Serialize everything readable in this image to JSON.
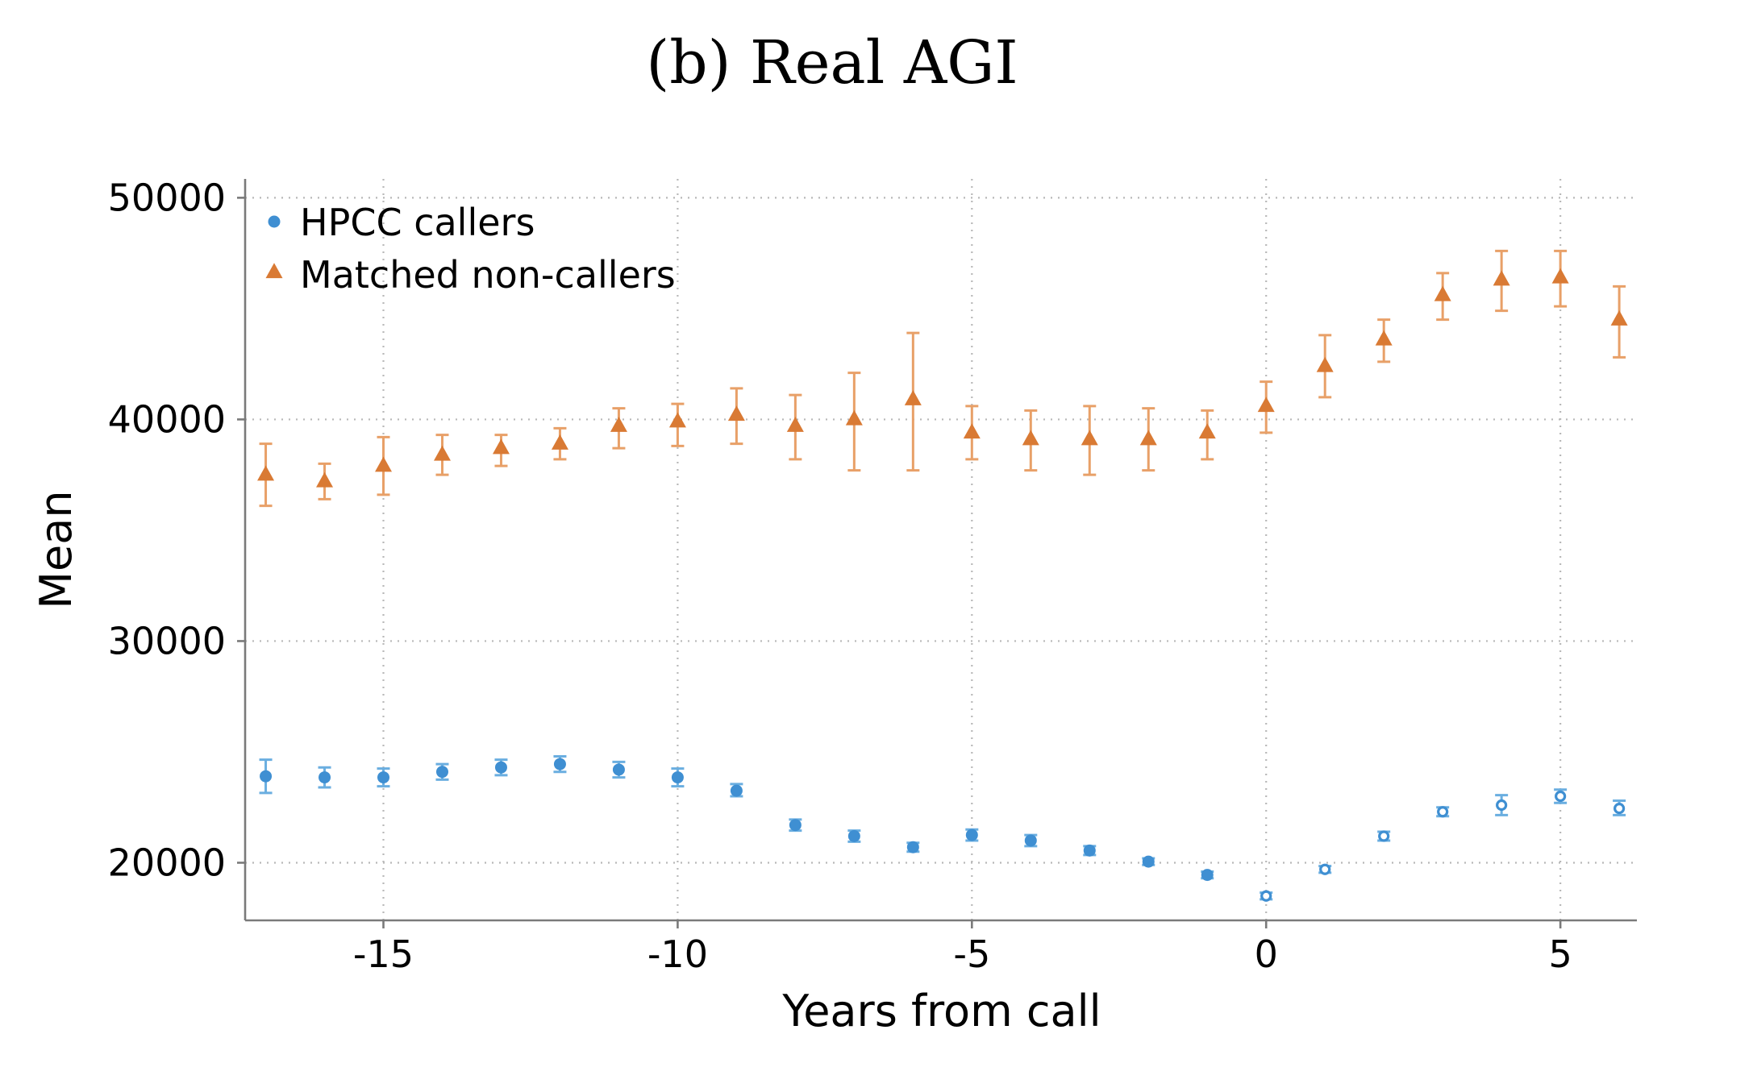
{
  "chart_data": {
    "type": "scatter",
    "title": "(b) Real AGI",
    "xlabel": "Years from call",
    "ylabel": "Mean",
    "xlim": [
      -17.35,
      6.3
    ],
    "ylim": [
      17400,
      50850
    ],
    "xticks": [
      -15,
      -10,
      -5,
      0,
      5
    ],
    "xtick_labels": [
      "-15",
      "-10",
      "-5",
      "0",
      "5"
    ],
    "yticks": [
      20000,
      30000,
      40000,
      50000
    ],
    "ytick_labels": [
      "20000",
      "30000",
      "40000",
      "50000"
    ],
    "grid": true,
    "legend_position": "top-left",
    "colors": {
      "callers": "#3f8fd2",
      "callers_error": "#6aaee0",
      "noncallers": "#d97a34",
      "noncallers_error": "#e8a068",
      "axis": "#7a7a7a",
      "grid": "#b8b8b8"
    },
    "series": [
      {
        "name": "HPCC callers",
        "marker": "circle",
        "hollow_from_x": 0,
        "x": [
          -17,
          -16,
          -15,
          -14,
          -13,
          -12,
          -11,
          -10,
          -9,
          -8,
          -7,
          -6,
          -5,
          -4,
          -3,
          -2,
          -1,
          0,
          1,
          2,
          3,
          4,
          5,
          6
        ],
        "values": [
          23900,
          23850,
          23850,
          24100,
          24300,
          24450,
          24200,
          23850,
          23250,
          21700,
          21200,
          20700,
          21250,
          21000,
          20550,
          20050,
          19450,
          18500,
          19700,
          21200,
          22300,
          22600,
          23000,
          22450
        ],
        "lower": [
          23150,
          23400,
          23450,
          23750,
          23950,
          24100,
          23850,
          23450,
          23000,
          21450,
          20950,
          20500,
          21000,
          20750,
          20350,
          19900,
          19300,
          18350,
          19550,
          21000,
          22100,
          22150,
          22700,
          22150
        ],
        "upper": [
          24650,
          24300,
          24250,
          24450,
          24650,
          24800,
          24550,
          24250,
          23550,
          21950,
          21450,
          20900,
          21500,
          21250,
          20750,
          20200,
          19600,
          18650,
          19850,
          21400,
          22500,
          23050,
          23300,
          22800
        ]
      },
      {
        "name": "Matched non-callers",
        "marker": "triangle",
        "x": [
          -17,
          -16,
          -15,
          -14,
          -13,
          -12,
          -11,
          -10,
          -9,
          -8,
          -7,
          -6,
          -5,
          -4,
          -3,
          -2,
          -1,
          0,
          1,
          2,
          3,
          4,
          5,
          6
        ],
        "values": [
          37500,
          37200,
          37900,
          38400,
          38700,
          38900,
          39700,
          39900,
          40200,
          39700,
          40000,
          40900,
          39400,
          39100,
          39100,
          39100,
          39400,
          40600,
          42400,
          43600,
          45600,
          46300,
          46400,
          44500
        ],
        "lower": [
          36100,
          36400,
          36600,
          37500,
          37900,
          38200,
          38700,
          38800,
          38900,
          38200,
          37700,
          37700,
          38200,
          37700,
          37500,
          37700,
          38200,
          39400,
          41000,
          42600,
          44500,
          44900,
          45100,
          42800
        ],
        "upper": [
          38900,
          38000,
          39200,
          39300,
          39300,
          39600,
          40500,
          40700,
          41400,
          41100,
          42100,
          43900,
          40600,
          40400,
          40600,
          40500,
          40400,
          41700,
          43800,
          44500,
          46600,
          47600,
          47600,
          46000
        ]
      }
    ]
  }
}
